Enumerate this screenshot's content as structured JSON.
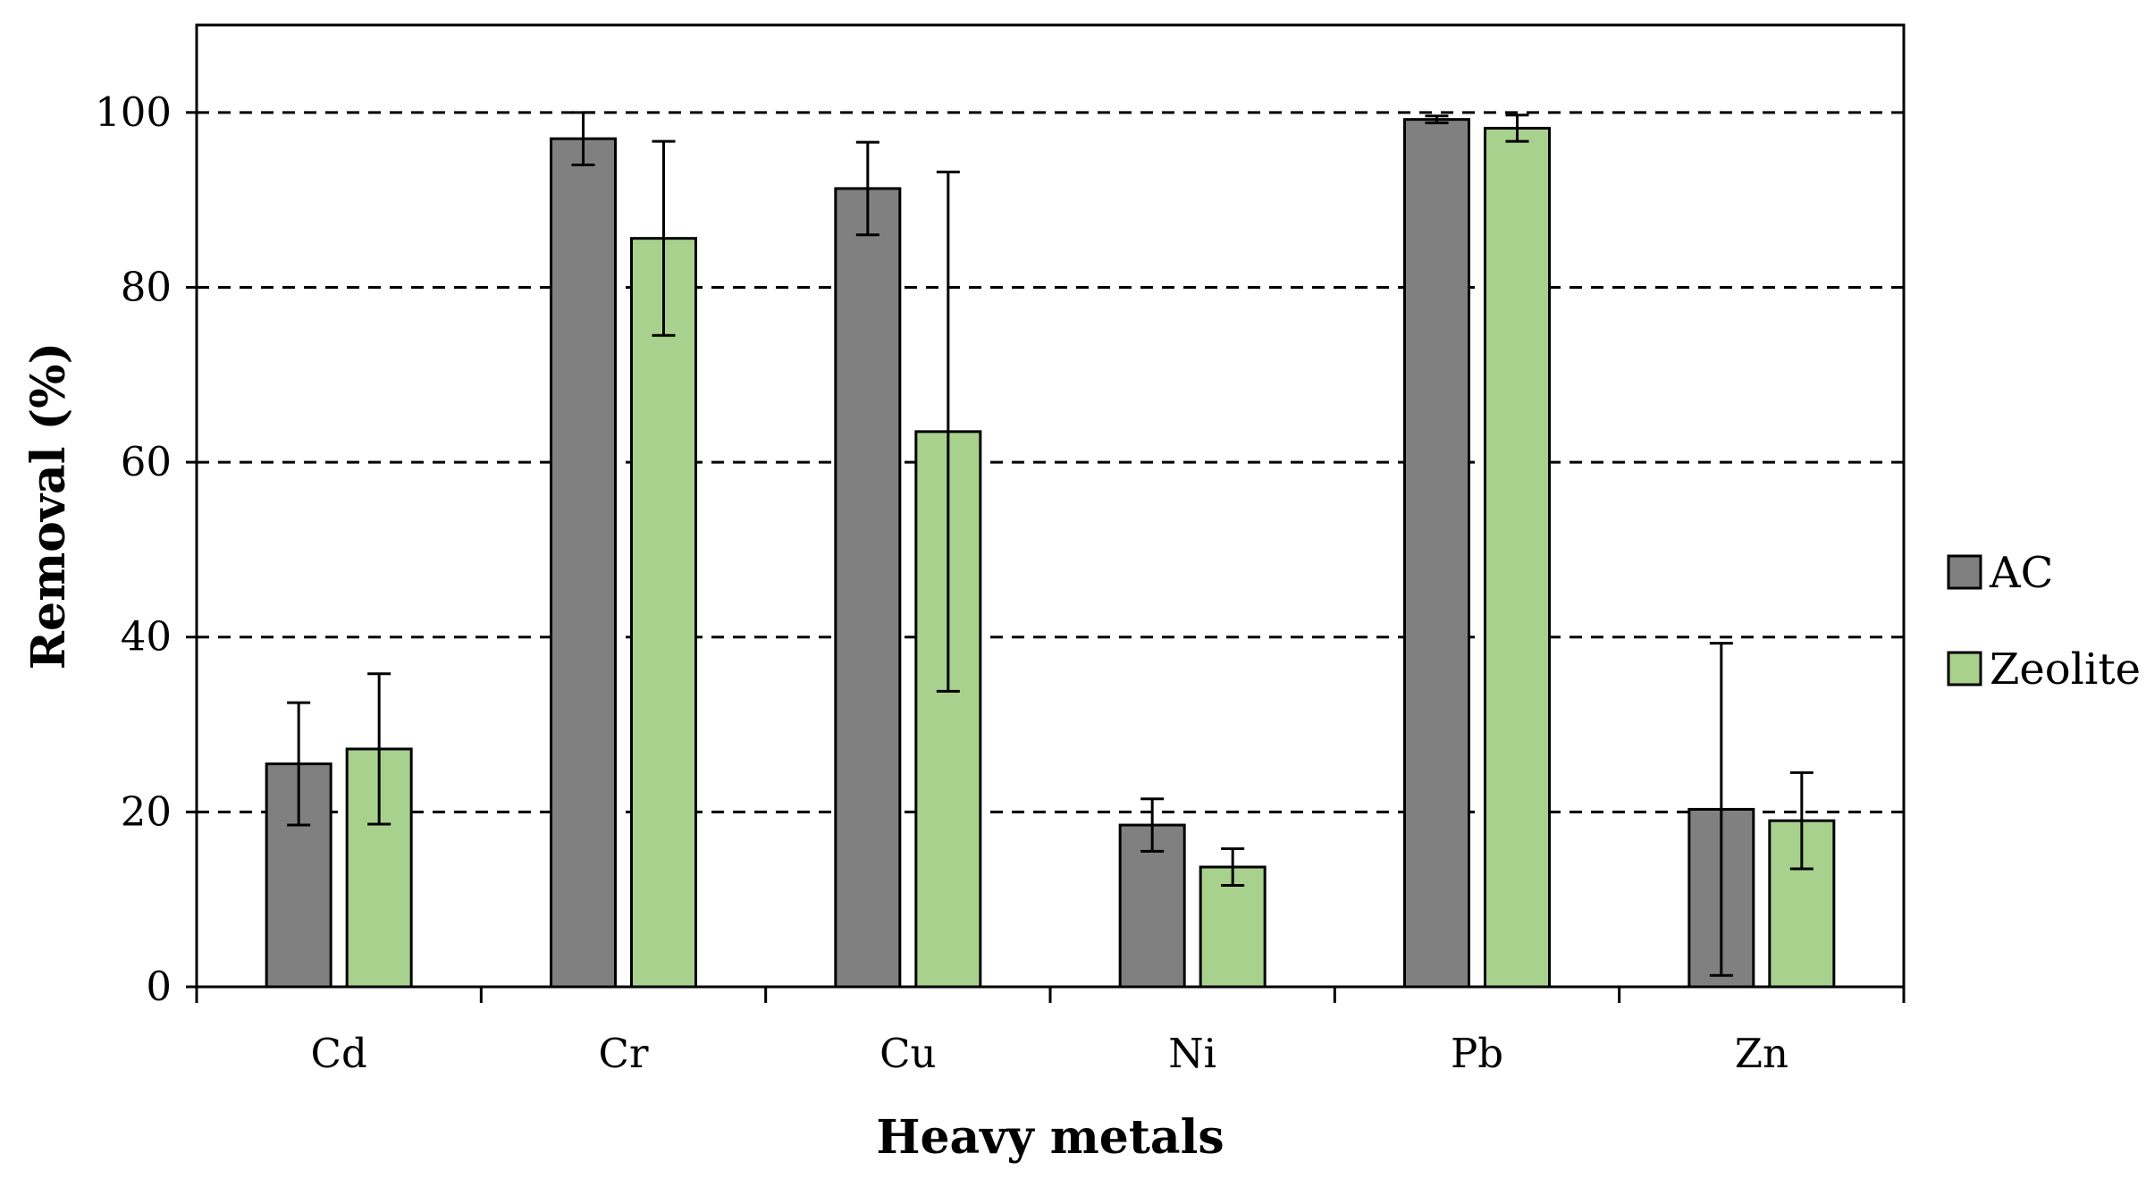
{
  "chart_data": {
    "type": "bar",
    "title": "",
    "xlabel": "Heavy metals",
    "ylabel": "Removal (%)",
    "ylim": [
      0,
      110
    ],
    "yticks": [
      0,
      20,
      40,
      60,
      80,
      100
    ],
    "grid": "horizontal-dashed",
    "legend_position": "right",
    "categories": [
      "Cd",
      "Cr",
      "Cu",
      "Ni",
      "Pb",
      "Zn"
    ],
    "series": [
      {
        "name": "AC",
        "color": "#808080",
        "values": [
          25.5,
          97.0,
          91.3,
          18.5,
          99.2,
          20.3
        ],
        "errors": [
          7.0,
          3.0,
          5.3,
          3.0,
          0.4,
          19.0
        ]
      },
      {
        "name": "Zeolite",
        "color": "#a9d18e",
        "values": [
          27.2,
          85.6,
          63.5,
          13.7,
          98.2,
          19.0
        ],
        "errors": [
          8.6,
          11.1,
          29.7,
          2.1,
          1.5,
          5.5
        ]
      }
    ]
  }
}
